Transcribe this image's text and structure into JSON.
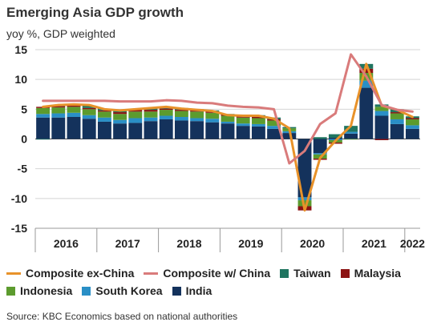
{
  "title": "Emerging Asia GDP growth",
  "subtitle": "yoy %, GDP weighted",
  "source": "Source: KBC Economics based on national authorities",
  "colors": {
    "India": "#14325c",
    "South Korea": "#2a8fc6",
    "Indonesia": "#5c9b2e",
    "Malaysia": "#8c1313",
    "Taiwan": "#1f7560",
    "Composite ex-China": "#e8922a",
    "Composite w/ China": "#d97b7b"
  },
  "chart_data": {
    "type": "bar",
    "stacked": true,
    "ylim": [
      -15,
      15
    ],
    "yticks": [
      -15,
      -10,
      -5,
      0,
      5,
      10,
      15
    ],
    "year_labels": [
      "2016",
      "2017",
      "2018",
      "2019",
      "2020",
      "2021",
      "2022"
    ],
    "categories": [
      "2016Q1",
      "2016Q2",
      "2016Q3",
      "2016Q4",
      "2017Q1",
      "2017Q2",
      "2017Q3",
      "2017Q4",
      "2018Q1",
      "2018Q2",
      "2018Q3",
      "2018Q4",
      "2019Q1",
      "2019Q2",
      "2019Q3",
      "2019Q4",
      "2020Q1",
      "2020Q2",
      "2020Q3",
      "2020Q4",
      "2021Q1",
      "2021Q2",
      "2021Q3",
      "2021Q4",
      "2022Q1"
    ],
    "series": [
      {
        "name": "India",
        "values": [
          3.6,
          3.6,
          3.7,
          3.4,
          2.9,
          2.6,
          2.7,
          3.0,
          3.3,
          3.1,
          3.0,
          2.8,
          2.6,
          2.2,
          2.1,
          1.7,
          1.0,
          -9.8,
          -2.4,
          0.2,
          0.9,
          8.6,
          3.9,
          2.5,
          1.7
        ]
      },
      {
        "name": "South Korea",
        "values": [
          0.6,
          0.7,
          0.7,
          0.6,
          0.7,
          0.6,
          0.8,
          0.6,
          0.6,
          0.6,
          0.5,
          0.6,
          0.3,
          0.4,
          0.4,
          0.5,
          0.3,
          -0.5,
          -0.2,
          -0.2,
          0.3,
          1.2,
          0.8,
          0.8,
          0.6
        ]
      },
      {
        "name": "Indonesia",
        "values": [
          1.0,
          1.0,
          1.0,
          1.0,
          1.0,
          1.0,
          1.1,
          1.0,
          1.0,
          1.0,
          1.1,
          1.0,
          1.0,
          1.0,
          1.0,
          0.9,
          0.5,
          -1.0,
          -0.7,
          -0.4,
          -0.1,
          1.3,
          0.7,
          1.0,
          1.0
        ]
      },
      {
        "name": "Malaysia",
        "values": [
          0.2,
          0.2,
          0.2,
          0.2,
          0.2,
          0.3,
          0.3,
          0.3,
          0.2,
          0.2,
          0.2,
          0.2,
          0.2,
          0.2,
          0.2,
          0.2,
          0.0,
          -0.7,
          -0.2,
          -0.2,
          -0.0,
          0.7,
          -0.2,
          0.2,
          0.2
        ]
      },
      {
        "name": "Taiwan",
        "values": [
          -0.1,
          0.1,
          0.3,
          0.4,
          0.3,
          0.2,
          0.2,
          0.3,
          0.3,
          0.3,
          0.2,
          0.2,
          0.1,
          0.2,
          0.3,
          0.3,
          0.2,
          0.0,
          0.3,
          0.6,
          1.0,
          0.8,
          0.4,
          0.5,
          0.3
        ]
      }
    ],
    "lines": [
      {
        "name": "Composite ex-China",
        "values": [
          5.4,
          5.7,
          5.8,
          5.7,
          5.0,
          4.8,
          5.0,
          5.2,
          5.4,
          5.1,
          4.9,
          4.7,
          4.0,
          3.9,
          3.9,
          3.4,
          1.8,
          -12.0,
          -3.2,
          -0.3,
          2.2,
          12.6,
          5.6,
          4.9,
          3.7
        ]
      },
      {
        "name": "Composite w/ China",
        "values": [
          6.4,
          6.4,
          6.4,
          6.4,
          6.4,
          6.3,
          6.3,
          6.3,
          6.5,
          6.4,
          6.1,
          6.0,
          5.6,
          5.4,
          5.3,
          5.0,
          -4.1,
          -2.0,
          2.5,
          4.3,
          14.2,
          10.5,
          5.7,
          4.9,
          4.6
        ]
      }
    ]
  },
  "legend": {
    "row1": [
      "Composite ex-China",
      "Composite w/ China",
      "Taiwan",
      "Malaysia"
    ],
    "row2": [
      "Indonesia",
      "South Korea",
      "India"
    ]
  }
}
